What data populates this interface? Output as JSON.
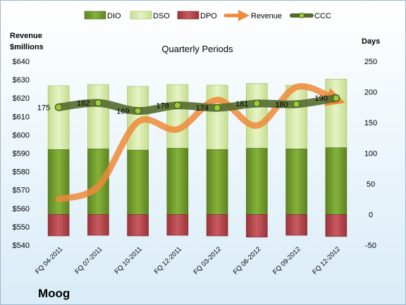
{
  "chart_data": {
    "type": "bar",
    "title": "Quarterly Periods",
    "company": "Moog",
    "y_left_label": [
      "Revenue",
      "$millions"
    ],
    "y_right_label": "Days",
    "y_left_range": [
      540,
      640
    ],
    "y_left_ticks": [
      "$540",
      "$550",
      "$560",
      "$570",
      "$580",
      "$590",
      "$600",
      "$610",
      "$620",
      "$630",
      "$640"
    ],
    "y_right_range": [
      -50,
      250
    ],
    "y_right_ticks": [
      "-50",
      "0",
      "50",
      "100",
      "150",
      "200",
      "250"
    ],
    "categories": [
      "FQ 04-2011",
      "FQ 07-2011",
      "FQ 10-2011",
      "FQ 12-2011",
      "FQ 03-2012",
      "FQ 06-2012",
      "FQ 09-2012",
      "FQ 12-2012"
    ],
    "legend": [
      "DIO",
      "DSO",
      "DPO",
      "Revenue",
      "CCC"
    ],
    "series": [
      {
        "name": "DIO",
        "axis": "right",
        "values": [
          106,
          107,
          105,
          108,
          106,
          108,
          107,
          109
        ]
      },
      {
        "name": "DSO",
        "axis": "right",
        "values": [
          104,
          105,
          104,
          104,
          105,
          106,
          104,
          112
        ]
      },
      {
        "name": "DPO",
        "axis": "right",
        "values": [
          -35,
          -34,
          -35,
          -34,
          -35,
          -37,
          -34,
          -36
        ]
      },
      {
        "name": "Revenue",
        "axis": "left",
        "values": [
          565,
          572,
          607,
          603,
          619,
          605,
          626,
          619
        ]
      },
      {
        "name": "CCC",
        "axis": "right",
        "values": [
          175,
          182,
          169,
          178,
          174,
          181,
          180,
          190
        ]
      }
    ],
    "ccc_labels": [
      "175",
      "182",
      "169",
      "178",
      "174",
      "181",
      "180",
      "190"
    ],
    "colors": {
      "DIO": "#6f9a2a",
      "DSO": "#d4e8a6",
      "DPO": "#b6474d",
      "Revenue": "#ee8a3a",
      "CCC": "#556b2f",
      "background_top": "#ffffff",
      "background_bottom": "#d9ecf7"
    },
    "grid": false,
    "legend_position": "top"
  }
}
